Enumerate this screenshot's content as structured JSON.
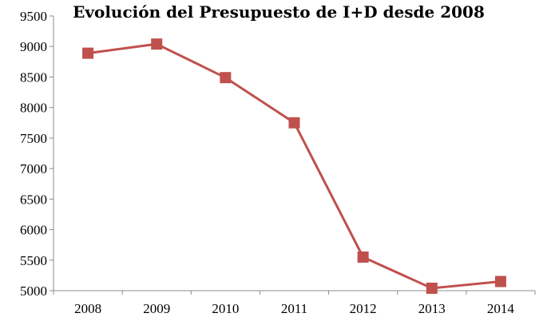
{
  "chart_data": {
    "type": "line",
    "title": "Evolución del Presupuesto de I+D desde 2008",
    "xlabel": "",
    "ylabel": "",
    "categories": [
      "2008",
      "2009",
      "2010",
      "2011",
      "2012",
      "2013",
      "2014"
    ],
    "series": [
      {
        "values": [
          8890,
          9040,
          8490,
          7750,
          5550,
          5040,
          5150
        ],
        "color": "#c0504d",
        "marker": "square"
      }
    ],
    "ylim": [
      5000,
      9500
    ],
    "yticks": [
      5000,
      5500,
      6000,
      6500,
      7000,
      7500,
      8000,
      8500,
      9000,
      9500
    ],
    "grid": false,
    "legend": "none"
  }
}
